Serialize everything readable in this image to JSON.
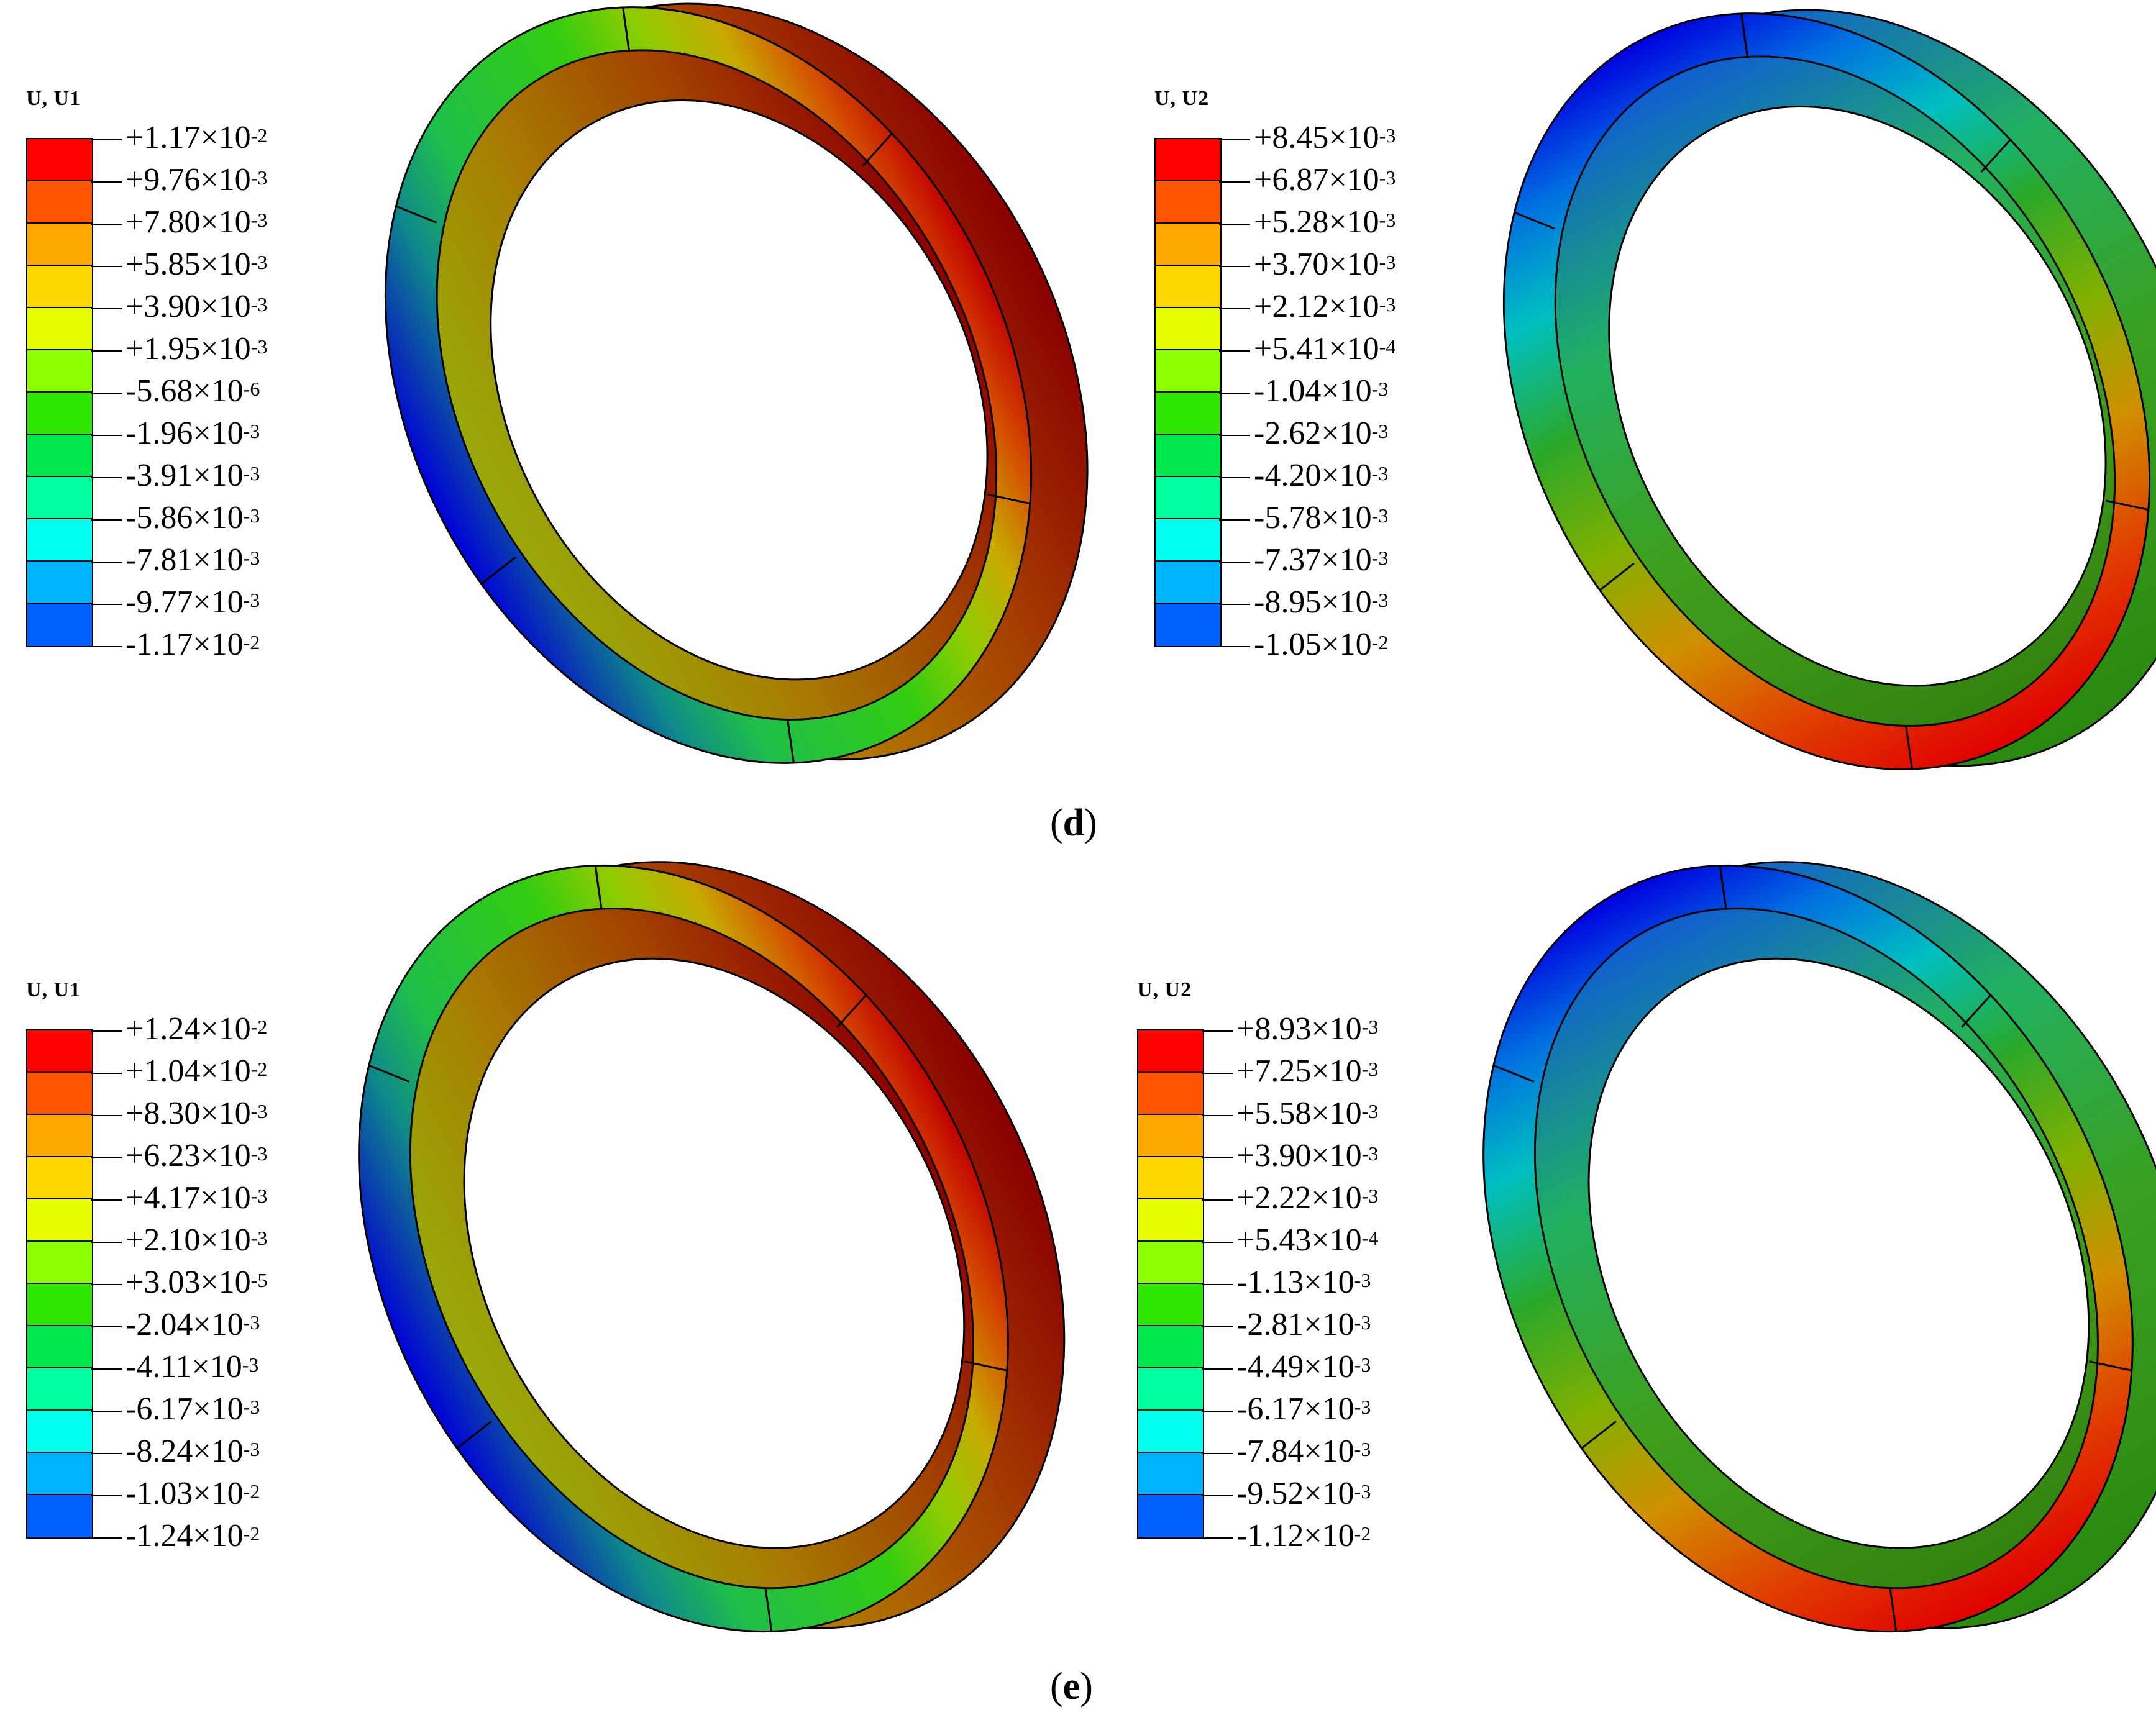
{
  "panels": [
    {
      "caption_letter": "d",
      "left": {
        "title": "U, U1",
        "labels": [
          "+1.17×10",
          "+9.76×10",
          "+7.80×10",
          "+5.85×10",
          "+3.90×10",
          "+1.95×10",
          "-5.68×10",
          "-1.96×10",
          "-3.91×10",
          "-5.86×10",
          "-7.81×10",
          "-9.77×10",
          "-1.17×10"
        ],
        "exps": [
          "-2",
          "-3",
          "-3",
          "-3",
          "-3",
          "-3",
          "-6",
          "-3",
          "-3",
          "-3",
          "-3",
          "-3",
          "-2"
        ]
      },
      "right": {
        "title": "U, U2",
        "labels": [
          "+8.45×10",
          "+6.87×10",
          "+5.28×10",
          "+3.70×10",
          "+2.12×10",
          "+5.41×10",
          "-1.04×10",
          "-2.62×10",
          "-4.20×10",
          "-5.78×10",
          "-7.37×10",
          "-8.95×10",
          "-1.05×10"
        ],
        "exps": [
          "-3",
          "-3",
          "-3",
          "-3",
          "-3",
          "-4",
          "-3",
          "-3",
          "-3",
          "-3",
          "-3",
          "-3",
          "-2"
        ]
      }
    },
    {
      "caption_letter": "e",
      "left": {
        "title": "U, U1",
        "labels": [
          "+1.24×10",
          "+1.04×10",
          "+8.30×10",
          "+6.23×10",
          "+4.17×10",
          "+2.10×10",
          "+3.03×10",
          "-2.04×10",
          "-4.11×10",
          "-6.17×10",
          "-8.24×10",
          "-1.03×10",
          "-1.24×10"
        ],
        "exps": [
          "-2",
          "-2",
          "-3",
          "-3",
          "-3",
          "-3",
          "-5",
          "-3",
          "-3",
          "-3",
          "-3",
          "-2",
          "-2"
        ]
      },
      "right": {
        "title": "U, U2",
        "labels": [
          "+8.93×10",
          "+7.25×10",
          "+5.58×10",
          "+3.90×10",
          "+2.22×10",
          "+5.43×10",
          "-1.13×10",
          "-2.81×10",
          "-4.49×10",
          "-6.17×10",
          "-7.84×10",
          "-9.52×10",
          "-1.12×10"
        ],
        "exps": [
          "-3",
          "-3",
          "-3",
          "-3",
          "-3",
          "-4",
          "-3",
          "-3",
          "-3",
          "-3",
          "-3",
          "-3",
          "-2"
        ]
      }
    }
  ],
  "colors": {
    "scale": [
      "#ff0000",
      "#ff5400",
      "#ffa800",
      "#ffd700",
      "#e6ff00",
      "#8cff00",
      "#2ee600",
      "#00e64d",
      "#00ff9f",
      "#00ffee",
      "#00b3ff",
      "#0061ff",
      "#0000ff"
    ]
  }
}
